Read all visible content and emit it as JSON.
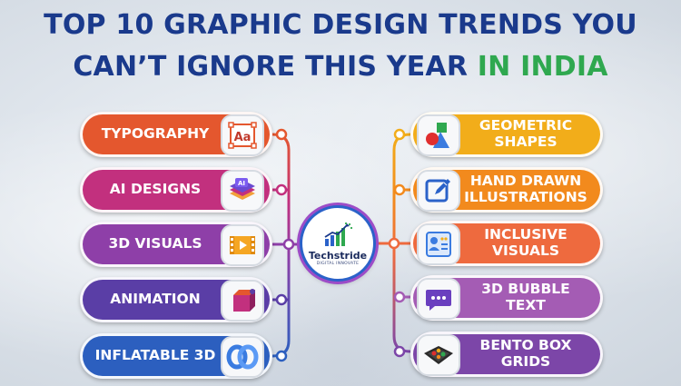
{
  "title": {
    "line1": "TOP 10 GRAPHIC DESIGN TRENDS YOU",
    "line2_main": "CAN’T IGNORE THIS YEAR ",
    "line2_accent": "IN INDIA"
  },
  "colors": {
    "title": "#1a3a8c",
    "accent": "#2fa84f"
  },
  "center_logo": {
    "name": "Techstride",
    "tagline": "DIGITAL INNOVATE"
  },
  "left_trends": [
    {
      "label": "TYPOGRAPHY",
      "color": "#e4572e",
      "icon": "typography-icon"
    },
    {
      "label": "AI DESIGNS",
      "color": "#c2307e",
      "icon": "ai-design-icon"
    },
    {
      "label": "3D VISUALS",
      "color": "#8e3fa8",
      "icon": "video-icon"
    },
    {
      "label": "ANIMATION",
      "color": "#5a3ea6",
      "icon": "animation-icon"
    },
    {
      "label": "INFLATABLE 3D",
      "color": "#2c5fbf",
      "icon": "inflatable-icon"
    }
  ],
  "right_trends": [
    {
      "label_lines": [
        "GEOMETRIC",
        "SHAPES"
      ],
      "color": "#f2ad1a",
      "icon": "geometric-shapes-icon"
    },
    {
      "label_lines": [
        "HAND DRAWN",
        "ILLUSTRATIONS"
      ],
      "color": "#f28a1d",
      "icon": "pen-edit-icon"
    },
    {
      "label_lines": [
        "INCLUSIVE",
        "VISUALS"
      ],
      "color": "#ee6a3e",
      "icon": "profile-card-icon"
    },
    {
      "label_lines": [
        "3D BUBBLE",
        "TEXT"
      ],
      "color": "#a45cb4",
      "icon": "chat-bubble-icon"
    },
    {
      "label_lines": [
        "BENTO BOX",
        "GRIDS"
      ],
      "color": "#7c46a8",
      "icon": "bento-box-icon"
    }
  ]
}
